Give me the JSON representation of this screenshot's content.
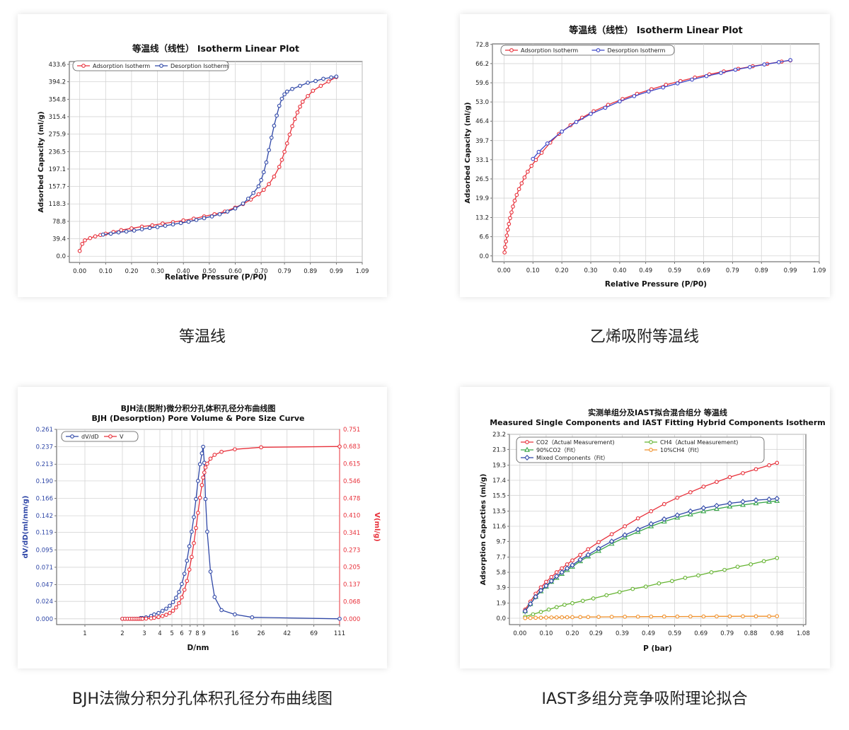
{
  "captions": [
    "等温线",
    "乙烯吸附等温线",
    "BJH法微分积分孔体积孔径分布曲线图",
    "IAST多组分竞争吸附理论拟合"
  ],
  "chart_data": [
    {
      "type": "line",
      "title": "等温线（线性） Isotherm Linear Plot",
      "xlabel": "Relative Pressure (P/P0)",
      "ylabel": "Adsorbed Capacity (ml/g)",
      "xlim": [
        -0.04,
        1.09
      ],
      "ylim": [
        -14,
        440
      ],
      "x_ticks": [
        "0.00",
        "0.10",
        "0.20",
        "0.30",
        "0.40",
        "0.50",
        "0.60",
        "0.70",
        "0.79",
        "0.89",
        "0.99",
        "1.09"
      ],
      "y_ticks": [
        "0.0",
        "39.4",
        "78.8",
        "118.3",
        "157.7",
        "197.1",
        "236.5",
        "275.9",
        "315.4",
        "354.8",
        "394.2",
        "433.6"
      ],
      "grid": true,
      "legend": "top-left",
      "series": [
        {
          "name": "Adsorption Isotherm",
          "color": "#e8303a",
          "x": [
            0.0,
            0.01,
            0.02,
            0.04,
            0.06,
            0.08,
            0.1,
            0.13,
            0.16,
            0.2,
            0.24,
            0.28,
            0.32,
            0.36,
            0.4,
            0.44,
            0.48,
            0.52,
            0.56,
            0.6,
            0.63,
            0.66,
            0.69,
            0.71,
            0.73,
            0.75,
            0.77,
            0.78,
            0.79,
            0.8,
            0.81,
            0.82,
            0.83,
            0.84,
            0.85,
            0.86,
            0.88,
            0.9,
            0.93,
            0.96,
            0.99
          ],
          "y": [
            12,
            28,
            36,
            41,
            45,
            48,
            51,
            55,
            59,
            63,
            67,
            70,
            74,
            77,
            81,
            85,
            90,
            95,
            101,
            110,
            118,
            128,
            140,
            150,
            163,
            180,
            202,
            218,
            236,
            255,
            275,
            294,
            310,
            325,
            338,
            349,
            362,
            374,
            385,
            395,
            405
          ]
        },
        {
          "name": "Desorption Isotherm",
          "color": "#2f47a7",
          "x": [
            0.99,
            0.97,
            0.94,
            0.91,
            0.88,
            0.85,
            0.82,
            0.8,
            0.79,
            0.78,
            0.77,
            0.76,
            0.75,
            0.74,
            0.73,
            0.72,
            0.71,
            0.7,
            0.69,
            0.67,
            0.65,
            0.63,
            0.6,
            0.57,
            0.54,
            0.51,
            0.48,
            0.45,
            0.42,
            0.39,
            0.36,
            0.33,
            0.3,
            0.27,
            0.24,
            0.21,
            0.18,
            0.15,
            0.12,
            0.09
          ],
          "y": [
            406,
            404,
            401,
            396,
            392,
            385,
            378,
            372,
            366,
            356,
            340,
            318,
            295,
            268,
            240,
            212,
            190,
            172,
            158,
            143,
            130,
            119,
            108,
            101,
            95,
            90,
            86,
            82,
            78,
            75,
            72,
            69,
            66,
            64,
            61,
            58,
            56,
            54,
            51,
            49
          ]
        }
      ]
    },
    {
      "type": "line",
      "title": "等温线（线性） Isotherm Linear Plot",
      "xlabel": "Relative Pressure (P/P0)",
      "ylabel": "Adsorbed Capacity (ml/g)",
      "xlim": [
        -0.04,
        1.09
      ],
      "ylim": [
        -2,
        73
      ],
      "x_ticks": [
        "0.00",
        "0.10",
        "0.20",
        "0.30",
        "0.40",
        "0.49",
        "0.59",
        "0.69",
        "0.79",
        "0.89",
        "0.99",
        "1.09"
      ],
      "y_ticks": [
        "0.0",
        "6.6",
        "13.2",
        "19.9",
        "26.5",
        "33.1",
        "39.7",
        "46.4",
        "53.0",
        "59.6",
        "66.2",
        "72.8"
      ],
      "grid": true,
      "legend": "top-left",
      "series": [
        {
          "name": "Adsorption Isotherm",
          "color": "#e8303a",
          "x": [
            0.002,
            0.004,
            0.007,
            0.01,
            0.013,
            0.017,
            0.021,
            0.026,
            0.031,
            0.037,
            0.044,
            0.052,
            0.061,
            0.071,
            0.082,
            0.095,
            0.11,
            0.13,
            0.16,
            0.19,
            0.23,
            0.27,
            0.31,
            0.36,
            0.41,
            0.46,
            0.51,
            0.56,
            0.61,
            0.66,
            0.71,
            0.76,
            0.81,
            0.86,
            0.91,
            0.96,
            0.99
          ],
          "y": [
            1.2,
            3.0,
            5.0,
            7.0,
            9.0,
            11.0,
            13.0,
            15.0,
            17.0,
            19.0,
            21.0,
            23.0,
            25.0,
            27.0,
            29.0,
            31.0,
            33.0,
            35.5,
            39.0,
            42.0,
            45.0,
            47.6,
            49.8,
            52.0,
            54.0,
            55.8,
            57.4,
            58.9,
            60.2,
            61.4,
            62.5,
            63.5,
            64.4,
            65.3,
            66.1,
            66.9,
            67.3
          ]
        },
        {
          "name": "Desorption Isotherm",
          "color": "#3a45c8",
          "x": [
            0.99,
            0.95,
            0.9,
            0.85,
            0.8,
            0.75,
            0.7,
            0.65,
            0.6,
            0.55,
            0.5,
            0.45,
            0.4,
            0.35,
            0.3,
            0.25,
            0.2,
            0.15,
            0.12,
            0.1
          ],
          "y": [
            67.4,
            66.7,
            65.9,
            65.0,
            64.1,
            63.0,
            61.9,
            60.7,
            59.4,
            58.0,
            56.6,
            55.0,
            53.2,
            51.0,
            48.9,
            46.1,
            42.8,
            38.7,
            35.8,
            33.4
          ]
        }
      ]
    },
    {
      "type": "line",
      "title": "BJH法(脱附)微分积分孔体积孔径分布曲线图",
      "subtitle": "BJH (Desorption) Pore Volume & Pore Size Curve",
      "xlabel": "D/nm",
      "ylabel": "dV/dD(ml/nm/g)",
      "y2label": "V(ml/g)",
      "x_scale": "log",
      "x_ticks": [
        1,
        2,
        3,
        4,
        5,
        6,
        7,
        8,
        9,
        16,
        26,
        42,
        69,
        111
      ],
      "xlim": [
        1,
        111
      ],
      "y_ticks": [
        "0.000",
        "0.024",
        "0.047",
        "0.071",
        "0.095",
        "0.119",
        "0.142",
        "0.166",
        "0.190",
        "0.213",
        "0.237",
        "0.261"
      ],
      "ylim": [
        -0.008,
        0.261
      ],
      "y2_ticks": [
        "0.000",
        "0.068",
        "0.137",
        "0.205",
        "0.273",
        "0.341",
        "0.410",
        "0.478",
        "0.546",
        "0.615",
        "0.683",
        "0.751"
      ],
      "y2lim": [
        -0.023,
        0.751
      ],
      "grid": true,
      "legend": "top-left",
      "series": [
        {
          "name": "dV/dD",
          "color": "#2f47a7",
          "axis": "left",
          "x": [
            2.0,
            2.1,
            2.2,
            2.3,
            2.4,
            2.5,
            2.6,
            2.7,
            2.8,
            2.9,
            3.1,
            3.4,
            3.6,
            3.9,
            4.2,
            4.5,
            4.8,
            5.1,
            5.4,
            5.7,
            6.0,
            6.3,
            6.6,
            6.9,
            7.2,
            7.5,
            7.8,
            8.1,
            8.4,
            8.7,
            8.9,
            9.1,
            9.3,
            9.6,
            10.2,
            11.0,
            12.5,
            16.0,
            22.0,
            111
          ],
          "y": [
            0.0,
            0.0,
            0.0,
            0.0,
            0.0,
            0.0,
            0.0,
            0.0,
            0.001,
            0.001,
            0.002,
            0.004,
            0.006,
            0.008,
            0.011,
            0.014,
            0.018,
            0.023,
            0.029,
            0.037,
            0.048,
            0.062,
            0.08,
            0.1,
            0.12,
            0.14,
            0.165,
            0.19,
            0.213,
            0.228,
            0.237,
            0.215,
            0.165,
            0.12,
            0.065,
            0.03,
            0.012,
            0.006,
            0.002,
            0.0
          ]
        },
        {
          "name": "V",
          "color": "#e8303a",
          "axis": "right",
          "x": [
            2.0,
            2.1,
            2.2,
            2.3,
            2.4,
            2.5,
            2.6,
            2.7,
            2.8,
            2.9,
            3.1,
            3.4,
            3.6,
            3.9,
            4.2,
            4.5,
            4.8,
            5.1,
            5.4,
            5.7,
            6.0,
            6.3,
            6.6,
            6.9,
            7.2,
            7.5,
            7.8,
            8.1,
            8.4,
            8.7,
            8.9,
            9.1,
            9.3,
            9.6,
            10.2,
            11.0,
            12.5,
            16.0,
            26.0,
            111
          ],
          "y": [
            0.0,
            0.0,
            0.0,
            0.0,
            0.0,
            0.0,
            0.0,
            0.0,
            0.0,
            0.0,
            0.001,
            0.002,
            0.004,
            0.007,
            0.011,
            0.016,
            0.023,
            0.032,
            0.045,
            0.062,
            0.085,
            0.115,
            0.15,
            0.195,
            0.245,
            0.3,
            0.36,
            0.42,
            0.48,
            0.53,
            0.56,
            0.58,
            0.6,
            0.615,
            0.635,
            0.65,
            0.662,
            0.672,
            0.68,
            0.683
          ]
        }
      ]
    },
    {
      "type": "line",
      "title": "实测单组分及IAST拟合混合组分 等温线",
      "subtitle": "Measured Single Components and IAST Fitting Hybrid Components Isotherm",
      "xlabel": "P (bar)",
      "ylabel": "Adsorption Capacties (ml/g)",
      "xlim": [
        -0.04,
        1.09
      ],
      "ylim": [
        -0.8,
        23.2
      ],
      "x_ticks": [
        "0.00",
        "0.10",
        "0.20",
        "0.29",
        "0.39",
        "0.49",
        "0.59",
        "0.69",
        "0.79",
        "0.88",
        "0.98",
        "1.08"
      ],
      "y_ticks": [
        "0.0",
        "1.9",
        "3.9",
        "5.8",
        "7.7",
        "9.7",
        "11.6",
        "13.5",
        "15.5",
        "17.4",
        "19.3",
        "21.3",
        "23.2"
      ],
      "grid": true,
      "legend": "top-left",
      "series": [
        {
          "name": "CO2（Actual Measurement)",
          "color": "#e8303a",
          "marker": "circle",
          "x": [
            0.02,
            0.04,
            0.06,
            0.08,
            0.1,
            0.12,
            0.14,
            0.16,
            0.18,
            0.2,
            0.23,
            0.26,
            0.3,
            0.35,
            0.4,
            0.45,
            0.5,
            0.55,
            0.6,
            0.65,
            0.7,
            0.75,
            0.8,
            0.85,
            0.9,
            0.95,
            0.98
          ],
          "y": [
            1.1,
            2.1,
            3.1,
            3.9,
            4.6,
            5.2,
            5.8,
            6.3,
            6.8,
            7.3,
            8.0,
            8.7,
            9.6,
            10.6,
            11.6,
            12.6,
            13.5,
            14.4,
            15.2,
            15.9,
            16.6,
            17.2,
            17.8,
            18.3,
            18.8,
            19.3,
            19.6
          ]
        },
        {
          "name": "CH4（Actual Measurement)",
          "color": "#66b432",
          "marker": "circle",
          "x": [
            0.02,
            0.05,
            0.08,
            0.11,
            0.14,
            0.17,
            0.2,
            0.24,
            0.28,
            0.33,
            0.38,
            0.43,
            0.48,
            0.53,
            0.58,
            0.63,
            0.68,
            0.73,
            0.78,
            0.83,
            0.88,
            0.93,
            0.98
          ],
          "y": [
            0.2,
            0.5,
            0.8,
            1.1,
            1.4,
            1.7,
            1.9,
            2.2,
            2.5,
            2.9,
            3.3,
            3.7,
            4.0,
            4.4,
            4.7,
            5.1,
            5.4,
            5.8,
            6.1,
            6.5,
            6.8,
            7.2,
            7.6
          ]
        },
        {
          "name": "90%CO2（Fit）",
          "color": "#3aa64a",
          "marker": "triangle",
          "x": [
            0.02,
            0.04,
            0.06,
            0.08,
            0.1,
            0.12,
            0.14,
            0.16,
            0.18,
            0.2,
            0.23,
            0.26,
            0.3,
            0.35,
            0.4,
            0.45,
            0.5,
            0.55,
            0.6,
            0.65,
            0.7,
            0.75,
            0.8,
            0.85,
            0.9,
            0.95,
            0.98
          ],
          "y": [
            0.9,
            1.8,
            2.7,
            3.4,
            4.0,
            4.6,
            5.1,
            5.6,
            6.1,
            6.5,
            7.2,
            7.8,
            8.5,
            9.4,
            10.2,
            10.9,
            11.6,
            12.2,
            12.7,
            13.1,
            13.5,
            13.8,
            14.1,
            14.3,
            14.5,
            14.7,
            14.8
          ]
        },
        {
          "name": "10%CH4（Fit）",
          "color": "#f0902a",
          "marker": "circle",
          "x": [
            0.02,
            0.04,
            0.06,
            0.08,
            0.1,
            0.12,
            0.14,
            0.16,
            0.18,
            0.2,
            0.23,
            0.26,
            0.3,
            0.35,
            0.4,
            0.45,
            0.5,
            0.55,
            0.6,
            0.65,
            0.7,
            0.75,
            0.8,
            0.85,
            0.9,
            0.95,
            0.98
          ],
          "y": [
            0.02,
            0.04,
            0.06,
            0.07,
            0.09,
            0.1,
            0.11,
            0.12,
            0.13,
            0.14,
            0.15,
            0.16,
            0.17,
            0.18,
            0.19,
            0.2,
            0.21,
            0.22,
            0.22,
            0.23,
            0.23,
            0.24,
            0.24,
            0.25,
            0.25,
            0.25,
            0.26
          ]
        },
        {
          "name": "Mixed Components（Fit）",
          "color": "#2f47a7",
          "marker": "diamond",
          "x": [
            0.02,
            0.04,
            0.06,
            0.08,
            0.1,
            0.12,
            0.14,
            0.16,
            0.18,
            0.2,
            0.23,
            0.26,
            0.3,
            0.35,
            0.4,
            0.45,
            0.5,
            0.55,
            0.6,
            0.65,
            0.7,
            0.75,
            0.8,
            0.85,
            0.9,
            0.95,
            0.98
          ],
          "y": [
            0.9,
            1.8,
            2.7,
            3.5,
            4.1,
            4.7,
            5.3,
            5.8,
            6.3,
            6.7,
            7.4,
            8.0,
            8.8,
            9.7,
            10.5,
            11.2,
            11.9,
            12.5,
            13.0,
            13.5,
            13.9,
            14.2,
            14.5,
            14.7,
            14.9,
            15.0,
            15.1
          ]
        }
      ]
    }
  ]
}
